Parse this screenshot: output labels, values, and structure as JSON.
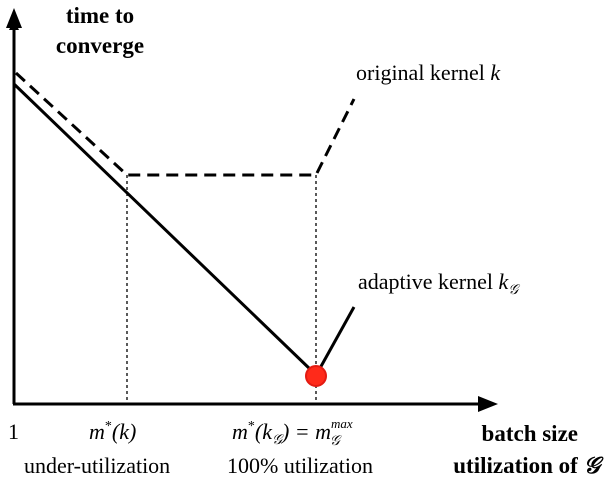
{
  "y_axis_label_line1": "time to",
  "y_axis_label_line2": "converge",
  "x_axis_label_line1": "batch size",
  "x_axis_label_line2_prefix": "utilization of ",
  "x_axis_label_line2_symbol": "𝒢",
  "curve_original_label_prefix": "original kernel ",
  "curve_original_label_var": "k",
  "curve_adaptive_label_prefix": "adaptive kernel ",
  "curve_adaptive_label_var": "k",
  "curve_adaptive_label_sub": "𝒢",
  "tick_one": "1",
  "tick_mk_m": "m",
  "tick_mk_star": "*",
  "tick_mk_arg": "(k)",
  "tick_mkg_m": "m",
  "tick_mkg_star": "*",
  "tick_mkg_open": "(k",
  "tick_mkg_sub": "𝒢",
  "tick_mkg_close": ") = m",
  "tick_mkg_sup": "max",
  "tick_mkg_sub2": "𝒢",
  "caption_under": "under-utilization",
  "caption_full": "100% utilization",
  "colors": {
    "axis": "#000000",
    "line": "#000000",
    "marker": "#ff2a1a",
    "marker_edge": "#e31b12"
  }
}
